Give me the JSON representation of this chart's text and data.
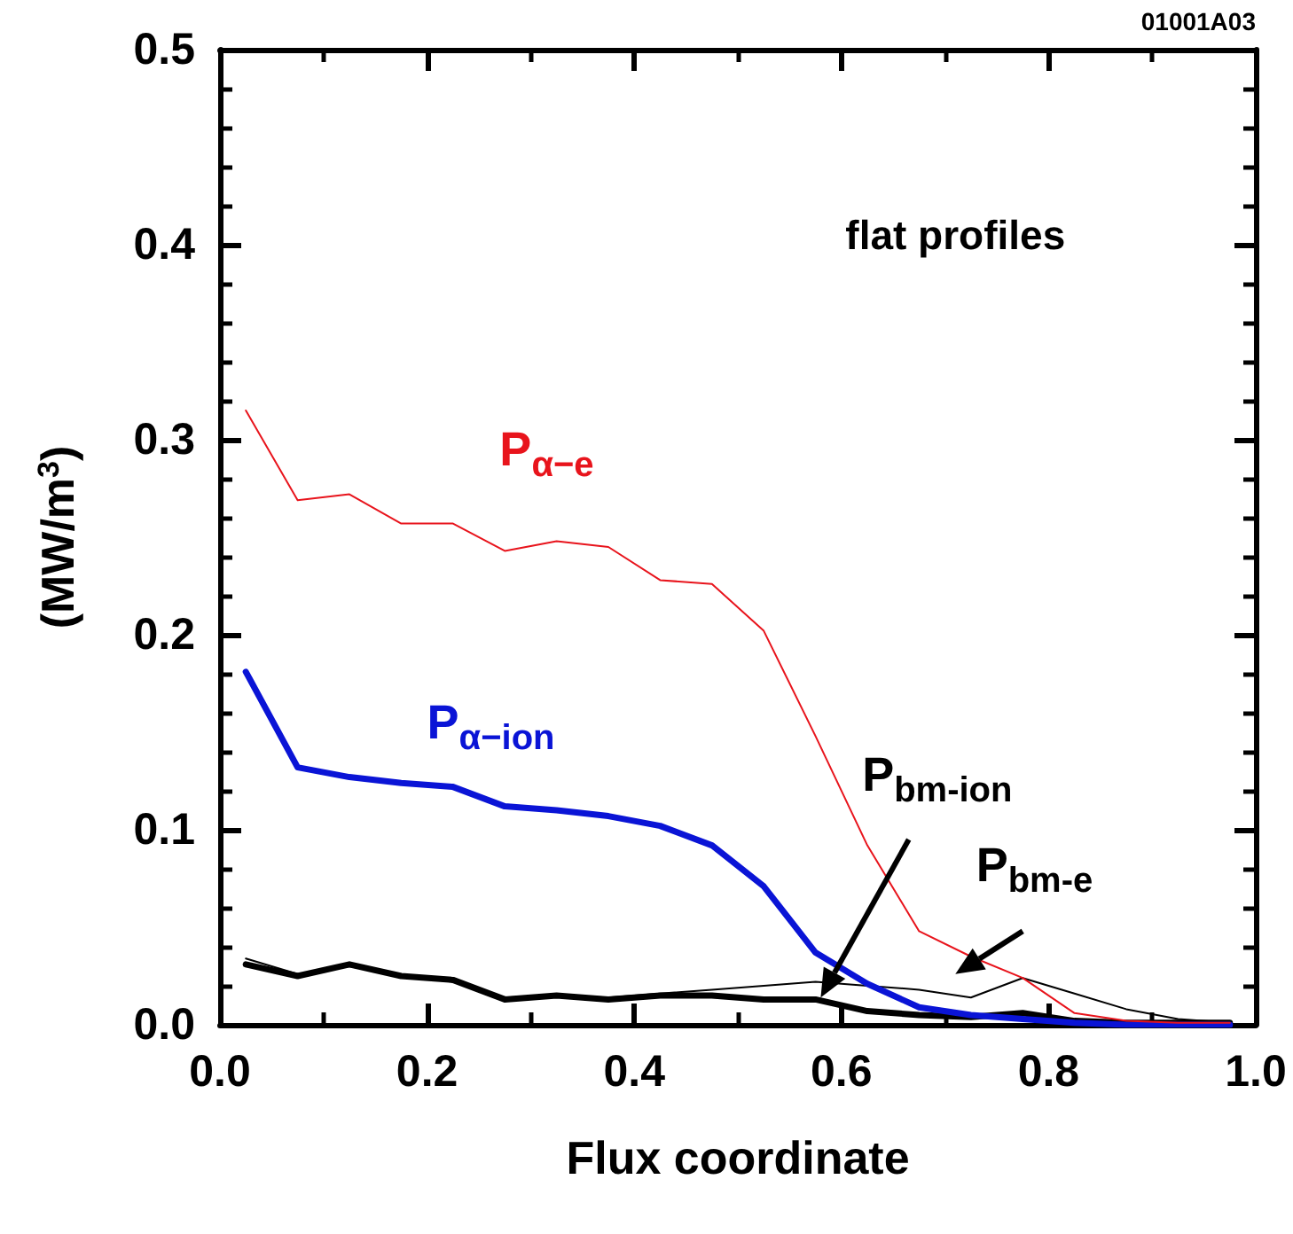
{
  "chart_data": {
    "type": "line",
    "xlabel": "Flux coordinate",
    "ylabel": "(MW/m$^{3}$)",
    "x": [
      0.025,
      0.075,
      0.125,
      0.175,
      0.225,
      0.275,
      0.325,
      0.375,
      0.425,
      0.475,
      0.525,
      0.575,
      0.625,
      0.675,
      0.725,
      0.775,
      0.825,
      0.875,
      0.925,
      0.975
    ],
    "series": [
      {
        "name": "P$_{α−e}$",
        "color": "#e8141c",
        "values": [
          0.315,
          0.269,
          0.272,
          0.257,
          0.257,
          0.243,
          0.248,
          0.245,
          0.228,
          0.226,
          0.202,
          0.148,
          0.092,
          0.048,
          0.035,
          0.024,
          0.006,
          0.002,
          0.001,
          0.001
        ]
      },
      {
        "name": "P$_{α−ion}$",
        "color": "#0a14d6",
        "values": [
          0.181,
          0.132,
          0.127,
          0.124,
          0.122,
          0.112,
          0.11,
          0.107,
          0.102,
          0.092,
          0.071,
          0.037,
          0.021,
          0.009,
          0.005,
          0.003,
          0.001,
          0.0,
          0.0,
          0.0
        ]
      },
      {
        "name": "P$_{bm-ion}$",
        "color": "#000000",
        "values": [
          0.031,
          0.025,
          0.031,
          0.025,
          0.023,
          0.013,
          0.015,
          0.013,
          0.015,
          0.015,
          0.013,
          0.013,
          0.007,
          0.005,
          0.004,
          0.006,
          0.002,
          0.001,
          0.001,
          0.001
        ]
      },
      {
        "name": "P$_{bm-e}$",
        "color": "#000000",
        "values": [
          0.034,
          0.026,
          0.03,
          0.025,
          0.022,
          0.014,
          0.015,
          0.014,
          0.016,
          0.018,
          0.02,
          0.022,
          0.02,
          0.018,
          0.014,
          0.024,
          0.016,
          0.008,
          0.003,
          0.001
        ]
      }
    ],
    "xlim": [
      0.0,
      1.0
    ],
    "xticks": [
      {
        "value": 0,
        "label": "0.0"
      },
      0.2,
      0.4,
      0.6,
      0.8,
      {
        "value": 1,
        "label": "1.0"
      }
    ],
    "ylim": [
      0.0,
      0.5
    ],
    "yticks": [
      {
        "value": 0,
        "label": "0.0"
      },
      0.1,
      0.2,
      0.3,
      0.4,
      0.5
    ],
    "annotations": [
      "flat profiles",
      "01001A03"
    ],
    "grid": false,
    "legend": false,
    "marker": "none",
    "line_style": "solid"
  }
}
